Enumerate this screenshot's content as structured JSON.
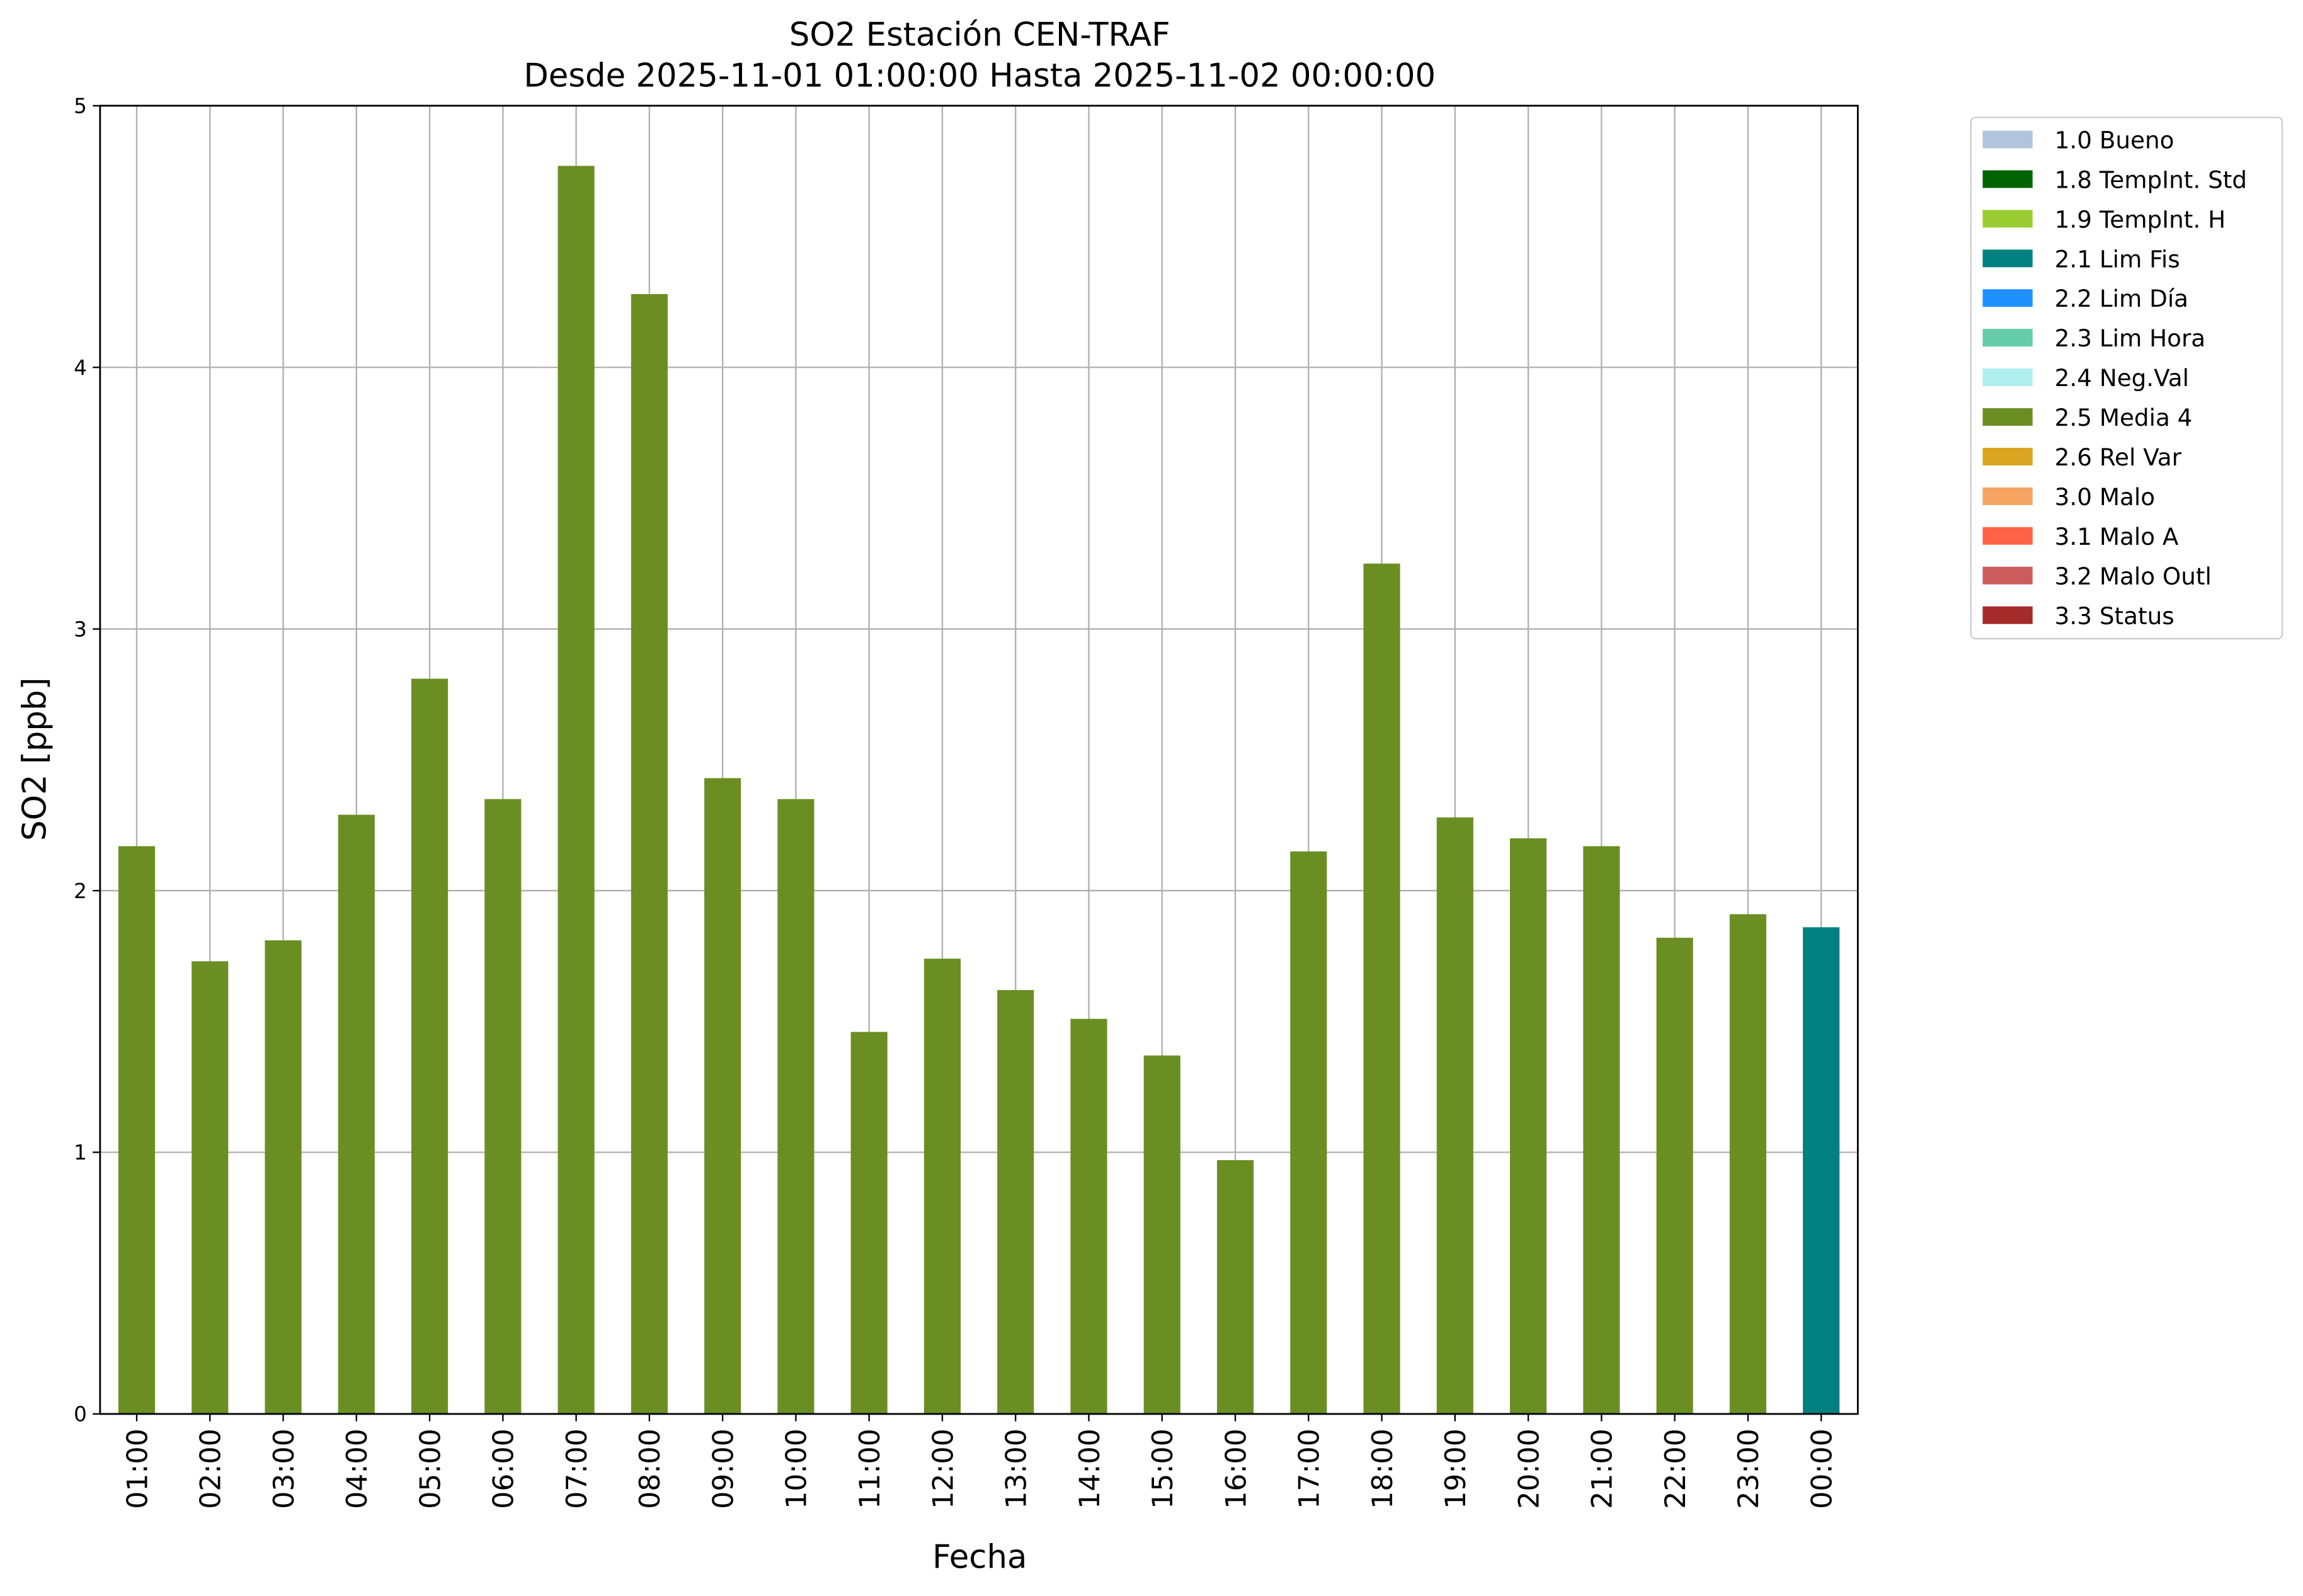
{
  "chart_data": {
    "type": "bar",
    "title": "SO2 Estación CEN-TRAF",
    "subtitle": "Desde 2025-11-01 01:00:00 Hasta 2025-11-02 00:00:00",
    "xlabel": "Fecha",
    "ylabel": "SO2 [ppb]",
    "ylim": [
      0,
      5
    ],
    "yticks": [
      "0",
      "1",
      "2",
      "3",
      "4",
      "5"
    ],
    "grid": true,
    "legend_position": "outside-top-right",
    "categories": [
      "01:00",
      "02:00",
      "03:00",
      "04:00",
      "05:00",
      "06:00",
      "07:00",
      "08:00",
      "09:00",
      "10:00",
      "11:00",
      "12:00",
      "13:00",
      "14:00",
      "15:00",
      "16:00",
      "17:00",
      "18:00",
      "19:00",
      "20:00",
      "21:00",
      "22:00",
      "23:00",
      "00:00"
    ],
    "values": [
      2.17,
      1.73,
      1.81,
      2.29,
      2.81,
      2.35,
      4.77,
      4.28,
      2.43,
      2.35,
      1.46,
      1.74,
      1.62,
      1.51,
      1.37,
      0.97,
      2.15,
      3.25,
      2.28,
      2.2,
      2.17,
      1.82,
      1.91,
      1.86
    ],
    "bar_flags": [
      "2.5 Media 4",
      "2.5 Media 4",
      "2.5 Media 4",
      "2.5 Media 4",
      "2.5 Media 4",
      "2.5 Media 4",
      "2.5 Media 4",
      "2.5 Media 4",
      "2.5 Media 4",
      "2.5 Media 4",
      "2.5 Media 4",
      "2.5 Media 4",
      "2.5 Media 4",
      "2.5 Media 4",
      "2.5 Media 4",
      "2.5 Media 4",
      "2.5 Media 4",
      "2.5 Media 4",
      "2.5 Media 4",
      "2.5 Media 4",
      "2.5 Media 4",
      "2.5 Media 4",
      "2.5 Media 4",
      "2.1 Lim Fis"
    ],
    "legend": [
      {
        "label": "1.0 Bueno",
        "color": "#B0C4DE"
      },
      {
        "label": "1.8 TempInt. Std",
        "color": "#006400"
      },
      {
        "label": "1.9 TempInt. H",
        "color": "#9ACD32"
      },
      {
        "label": "2.1 Lim Fis",
        "color": "#008080"
      },
      {
        "label": "2.2 Lim Día",
        "color": "#1E90FF"
      },
      {
        "label": "2.3 Lim Hora",
        "color": "#66CDAA"
      },
      {
        "label": "2.4 Neg.Val",
        "color": "#AFEEEE"
      },
      {
        "label": "2.5 Media 4",
        "color": "#6B8E23"
      },
      {
        "label": "2.6 Rel Var",
        "color": "#DAA520"
      },
      {
        "label": "3.0 Malo",
        "color": "#F4A460"
      },
      {
        "label": "3.1 Malo A",
        "color": "#FF6347"
      },
      {
        "label": "3.2 Malo Outl",
        "color": "#CD5C5C"
      },
      {
        "label": "3.3 Status",
        "color": "#A52A2A"
      }
    ]
  }
}
